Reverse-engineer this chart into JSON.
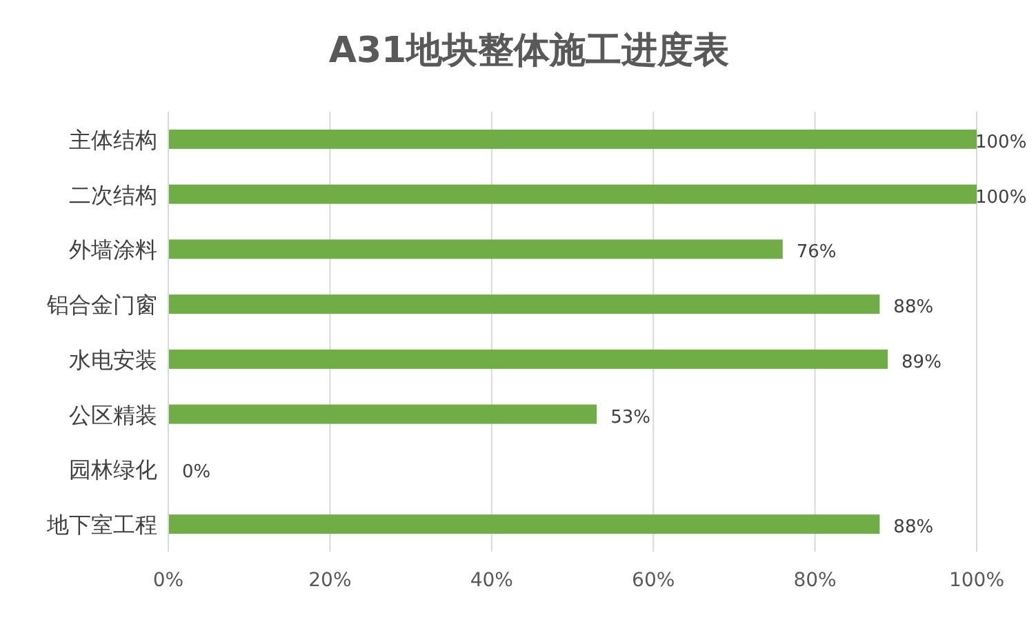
{
  "chart_data": {
    "type": "bar",
    "orientation": "horizontal",
    "title": "A31地块整体施工进度表",
    "categories": [
      "主体结构",
      "二次结构",
      "外墙涂料",
      "铝合金门窗",
      "水电安装",
      "公区精装",
      "园林绿化",
      "地下室工程"
    ],
    "values": [
      100,
      100,
      76,
      88,
      89,
      53,
      0,
      88
    ],
    "value_labels": [
      "100%",
      "100%",
      "76%",
      "88%",
      "89%",
      "53%",
      "0%",
      "88%"
    ],
    "color": "#70ad47",
    "xlim": [
      0,
      100
    ],
    "xticks": [
      {
        "value": 0,
        "label": "0%"
      },
      {
        "value": 20,
        "label": "20%"
      },
      {
        "value": 40,
        "label": "40%"
      },
      {
        "value": 60,
        "label": "60%"
      },
      {
        "value": 80,
        "label": "80%"
      },
      {
        "value": 100,
        "label": "100%"
      }
    ],
    "grid": "x"
  }
}
